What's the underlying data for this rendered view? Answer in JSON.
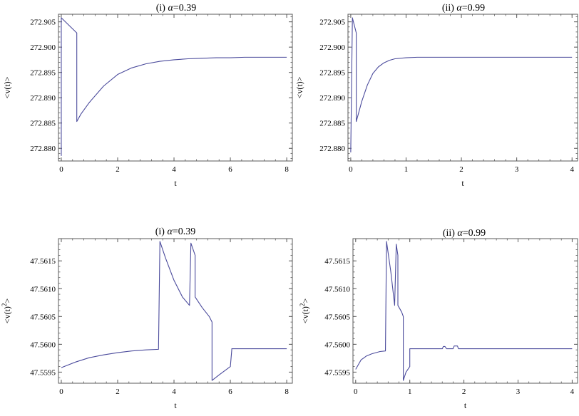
{
  "chart_data": [
    {
      "type": "line",
      "title": "(i) α=0.39",
      "title_prefix": "(i) ",
      "title_symbol": "α",
      "title_suffix": "=0.39",
      "xlabel": "t",
      "ylabel": "<v(t)>",
      "xlim": [
        -0.1,
        8.2
      ],
      "ylim": [
        272.8775,
        272.9065
      ],
      "xticks": [
        0,
        2,
        4,
        6,
        8
      ],
      "xtick_labels": [
        "0",
        "2",
        "4",
        "6",
        "8"
      ],
      "yticks": [
        272.88,
        272.885,
        272.89,
        272.895,
        272.9,
        272.905
      ],
      "ytick_labels": [
        "272.880",
        "272.885",
        "272.890",
        "272.895",
        "272.900",
        "272.905"
      ],
      "grid": false,
      "series": [
        {
          "color": "#4b4b9c",
          "x": [
            0,
            0,
            0.55,
            0.55,
            0.7,
            1.0,
            1.5,
            2.0,
            2.5,
            3.0,
            3.5,
            4.0,
            4.5,
            5.0,
            5.5,
            6.0,
            6.5,
            7.0,
            7.5,
            8.0
          ],
          "y": [
            272.8785,
            272.9058,
            272.9028,
            272.8853,
            272.8868,
            272.8891,
            272.8923,
            272.8946,
            272.8959,
            272.8967,
            272.8972,
            272.8975,
            272.8977,
            272.8978,
            272.8979,
            272.8979,
            272.898,
            272.898,
            272.898,
            272.898
          ]
        }
      ]
    },
    {
      "type": "line",
      "title": "(ii) α=0.99",
      "title_prefix": "(ii) ",
      "title_symbol": "α",
      "title_suffix": "=0.99",
      "xlabel": "t",
      "ylabel": "<v(t)>",
      "xlim": [
        -0.05,
        4.1
      ],
      "ylim": [
        272.8775,
        272.9065
      ],
      "xticks": [
        0,
        1,
        2,
        3,
        4
      ],
      "xtick_labels": [
        "0",
        "1",
        "2",
        "3",
        "4"
      ],
      "yticks": [
        272.88,
        272.885,
        272.89,
        272.895,
        272.9,
        272.905
      ],
      "ytick_labels": [
        "272.880",
        "272.885",
        "272.890",
        "272.895",
        "272.900",
        "272.905"
      ],
      "grid": false,
      "series": [
        {
          "color": "#4b4b9c",
          "x": [
            0,
            0.03,
            0.1,
            0.1,
            0.2,
            0.3,
            0.4,
            0.5,
            0.6,
            0.7,
            0.8,
            1.0,
            1.2,
            1.5,
            2.0,
            2.5,
            3.0,
            3.5,
            4.0
          ],
          "y": [
            272.8792,
            272.9058,
            272.9028,
            272.8853,
            272.8893,
            272.8925,
            272.8948,
            272.8961,
            272.8969,
            272.8974,
            272.8977,
            272.8979,
            272.898,
            272.898,
            272.898,
            272.898,
            272.898,
            272.898,
            272.898
          ]
        }
      ]
    },
    {
      "type": "line",
      "title": "(i) α=0.39",
      "title_prefix": "(i) ",
      "title_symbol": "α",
      "title_suffix": "=0.39",
      "xlabel": "t",
      "ylabel": "<v(t)2>",
      "ylabel_main": "<v(t)",
      "ylabel_sup": "2",
      "ylabel_end": ">",
      "xlim": [
        -0.1,
        8.2
      ],
      "ylim": [
        47.5593,
        47.5619
      ],
      "xticks": [
        0,
        2,
        4,
        6,
        8
      ],
      "xtick_labels": [
        "0",
        "2",
        "4",
        "6",
        "8"
      ],
      "yticks": [
        47.5595,
        47.56,
        47.5605,
        47.561,
        47.5615
      ],
      "ytick_labels": [
        "47.5595",
        "47.5600",
        "47.5605",
        "47.5610",
        "47.5615"
      ],
      "grid": false,
      "series": [
        {
          "color": "#4b4b9c",
          "x": [
            0,
            0.5,
            1.0,
            1.5,
            2.0,
            2.5,
            3.0,
            3.45,
            3.5,
            3.7,
            4.0,
            4.3,
            4.55,
            4.6,
            4.75,
            4.75,
            5.0,
            5.25,
            5.35,
            5.35,
            5.6,
            6.0,
            6.05,
            6.05,
            7.0,
            8.0
          ],
          "y": [
            47.55958,
            47.55968,
            47.55976,
            47.55981,
            47.55985,
            47.55988,
            47.5599,
            47.55991,
            47.56185,
            47.56155,
            47.56115,
            47.56085,
            47.5607,
            47.56182,
            47.5616,
            47.56085,
            47.56066,
            47.5605,
            47.5604,
            47.55935,
            47.55945,
            47.5596,
            47.5599,
            47.55992,
            47.55992,
            47.55992
          ]
        }
      ]
    },
    {
      "type": "line",
      "title": "(ii) α=0.99",
      "title_prefix": "(ii) ",
      "title_symbol": "α",
      "title_suffix": "=0.99",
      "xlabel": "t",
      "ylabel": "<v(t)2>",
      "ylabel_main": "<v(t)",
      "ylabel_sup": "2",
      "ylabel_end": ">",
      "xlim": [
        -0.05,
        4.1
      ],
      "ylim": [
        47.5593,
        47.5619
      ],
      "xticks": [
        0,
        1,
        2,
        3,
        4
      ],
      "xtick_labels": [
        "0",
        "1",
        "2",
        "3",
        "4"
      ],
      "yticks": [
        47.5595,
        47.56,
        47.5605,
        47.561,
        47.5615
      ],
      "ytick_labels": [
        "47.5595",
        "47.5600",
        "47.5605",
        "47.5610",
        "47.5615"
      ],
      "grid": false,
      "series": [
        {
          "color": "#4b4b9c",
          "x": [
            0,
            0.1,
            0.2,
            0.3,
            0.45,
            0.55,
            0.57,
            0.65,
            0.72,
            0.75,
            0.78,
            0.78,
            0.85,
            0.88,
            0.88,
            0.93,
            1.0,
            1.0,
            1.6,
            1.62,
            1.65,
            1.68,
            1.8,
            1.82,
            1.84,
            1.88,
            1.9,
            2.0,
            3.0,
            4.0
          ],
          "y": [
            47.55955,
            47.55972,
            47.55979,
            47.55983,
            47.55987,
            47.55988,
            47.56185,
            47.5613,
            47.5607,
            47.5618,
            47.5616,
            47.5607,
            47.56058,
            47.5605,
            47.55935,
            47.5595,
            47.5596,
            47.55992,
            47.55992,
            47.55996,
            47.55996,
            47.55992,
            47.55992,
            47.55997,
            47.55997,
            47.55997,
            47.55992,
            47.55992,
            47.55992,
            47.55992
          ]
        }
      ]
    }
  ]
}
